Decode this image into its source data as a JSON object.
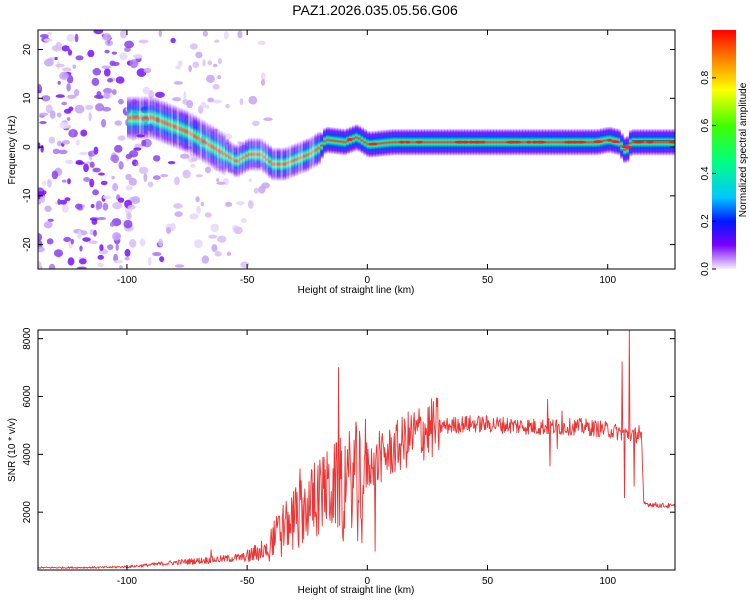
{
  "title": "PAZ1.2026.035.05.56.G06",
  "chart_data": [
    {
      "type": "heatmap",
      "name": "spectrogram",
      "xlabel": "Height of straight line (km)",
      "ylabel": "Frequency (Hz)",
      "xlim": [
        -137,
        128
      ],
      "ylim": [
        -25,
        24
      ],
      "xticks": [
        -100,
        -50,
        0,
        50,
        100
      ],
      "yticks": [
        -20,
        -10,
        0,
        10,
        20
      ],
      "colorbar": {
        "label": "Normalized spectral amplitude",
        "range": [
          0,
          1
        ],
        "ticks": [
          0.0,
          0.2,
          0.4,
          0.6,
          0.8
        ]
      },
      "band_center_hz": [
        [
          -137,
          null
        ],
        [
          -100,
          6
        ],
        [
          -90,
          6
        ],
        [
          -80,
          4
        ],
        [
          -75,
          3
        ],
        [
          -70,
          1.5
        ],
        [
          -65,
          0
        ],
        [
          -60,
          -1.5
        ],
        [
          -55,
          -3
        ],
        [
          -50,
          -1.5
        ],
        [
          -45,
          -1.5
        ],
        [
          -40,
          -3.5
        ],
        [
          -35,
          -3.5
        ],
        [
          -30,
          -2.5
        ],
        [
          -25,
          -1.5
        ],
        [
          -20,
          0
        ],
        [
          -18,
          1.5
        ],
        [
          -10,
          1
        ],
        [
          -5,
          2
        ],
        [
          0,
          0.5
        ],
        [
          10,
          1
        ],
        [
          20,
          1
        ],
        [
          40,
          1
        ],
        [
          60,
          1
        ],
        [
          80,
          1
        ],
        [
          95,
          1
        ],
        [
          100,
          1.5
        ],
        [
          104,
          1
        ],
        [
          107,
          -1
        ],
        [
          109,
          1
        ],
        [
          115,
          1
        ],
        [
          128,
          1
        ]
      ]
    },
    {
      "type": "line",
      "name": "snr",
      "xlabel": "Height of straight line (km)",
      "ylabel": "SNR (10 * v/v)",
      "xlim": [
        -137,
        128
      ],
      "ylim": [
        0,
        8300
      ],
      "xticks": [
        -100,
        -50,
        0,
        50,
        100
      ],
      "yticks": [
        2000,
        4000,
        6000,
        8000
      ],
      "color": "#ee3333",
      "envelope": [
        [
          -137,
          80
        ],
        [
          -110,
          90
        ],
        [
          -100,
          110
        ],
        [
          -90,
          180
        ],
        [
          -80,
          260
        ],
        [
          -70,
          320
        ],
        [
          -60,
          380
        ],
        [
          -55,
          420
        ],
        [
          -50,
          450
        ],
        [
          -45,
          650
        ],
        [
          -40,
          1000
        ],
        [
          -35,
          1500
        ],
        [
          -30,
          1900
        ],
        [
          -25,
          2200
        ],
        [
          -20,
          2500
        ],
        [
          -15,
          2800
        ],
        [
          -10,
          3000
        ],
        [
          -5,
          3300
        ],
        [
          0,
          3500
        ],
        [
          5,
          3800
        ],
        [
          10,
          4100
        ],
        [
          15,
          4400
        ],
        [
          20,
          4700
        ],
        [
          25,
          4850
        ],
        [
          30,
          4950
        ],
        [
          40,
          5050
        ],
        [
          50,
          5050
        ],
        [
          60,
          5000
        ],
        [
          70,
          4950
        ],
        [
          80,
          4950
        ],
        [
          90,
          4950
        ],
        [
          100,
          4850
        ],
        [
          105,
          4750
        ],
        [
          108,
          4700
        ],
        [
          110,
          4700
        ],
        [
          114,
          4650
        ],
        [
          115,
          2300
        ],
        [
          120,
          2250
        ],
        [
          128,
          2200
        ]
      ],
      "spikes": [
        [
          -65,
          700
        ],
        [
          -42,
          900
        ],
        [
          -33,
          2000
        ],
        [
          -28,
          3500
        ],
        [
          -22,
          3700
        ],
        [
          -18,
          3900
        ],
        [
          -12,
          7000
        ],
        [
          -10,
          1000
        ],
        [
          -3,
          4500
        ],
        [
          5,
          4800
        ],
        [
          22,
          5300
        ],
        [
          75,
          5900
        ],
        [
          76,
          3600
        ],
        [
          79,
          4200
        ],
        [
          81,
          5500
        ],
        [
          106,
          7200
        ],
        [
          107,
          2500
        ],
        [
          109,
          8300
        ],
        [
          111,
          2900
        ],
        [
          113,
          5000
        ]
      ]
    }
  ]
}
